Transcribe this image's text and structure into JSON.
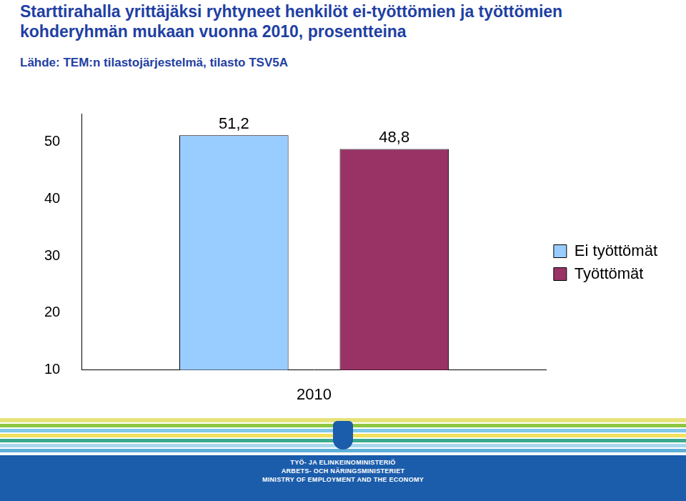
{
  "chart_data": {
    "type": "bar",
    "title": [
      "Starttirahalla yrittäjäksi ryhtyneet henkilöt ei-työttömien ja työttömien",
      "kohderyhmän mukaan vuonna 2010, prosentteina"
    ],
    "subtitle": "Lähde: TEM:n tilastojärjestelmä, tilasto TSV5A",
    "categories": [
      "2010"
    ],
    "series": [
      {
        "name": "Ei työttömät",
        "color": "#99ccff",
        "values": [
          51.2
        ],
        "value_labels": [
          "51,2"
        ]
      },
      {
        "name": "Työttömät",
        "color": "#993366",
        "values": [
          48.8
        ],
        "value_labels": [
          "48,8"
        ]
      }
    ],
    "ylim": [
      10,
      55
    ],
    "yticks": [
      10,
      20,
      30,
      40,
      50
    ],
    "grid": false,
    "legend": "right",
    "data_labels": true
  },
  "footer": {
    "lines": [
      "TYÖ- JA ELINKEINOMINISTERIÖ",
      "ARBETS- OCH NÄRINGSMINISTERIET",
      "MINISTRY OF EMPLOYMENT AND THE ECONOMY"
    ]
  }
}
